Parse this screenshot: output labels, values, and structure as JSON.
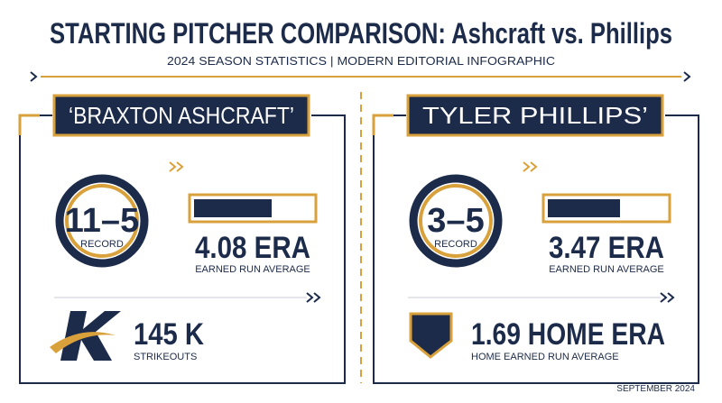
{
  "header": {
    "title": "STARTING PITCHER COMPARISON: Ashcraft vs. Phillips",
    "subtitle": "2024 SEASON STATISTICS | MODERN EDITORIAL INFOGRAPHIC"
  },
  "panels": [
    {
      "name": "‘BRAXTON ASHCRAFT’",
      "record": "11–5",
      "record_label": "RECORD",
      "era": "4.08 ERA",
      "era_label": "EARNED RUN AVERAGE",
      "stat": "145 K",
      "stat_label": "STRIKEOUTS"
    },
    {
      "name": "TYLER PHILLIPS’",
      "record": "3–5",
      "record_label": "RECORD",
      "era": "3.47 ERA",
      "era_label": "EARNED RUN AVERAGE",
      "stat": "1.69 HOME ERA",
      "stat_label": "HOME EARNED RUN AVERAGE"
    }
  ],
  "footer": {
    "date": "SEPTEMBER 2024"
  }
}
